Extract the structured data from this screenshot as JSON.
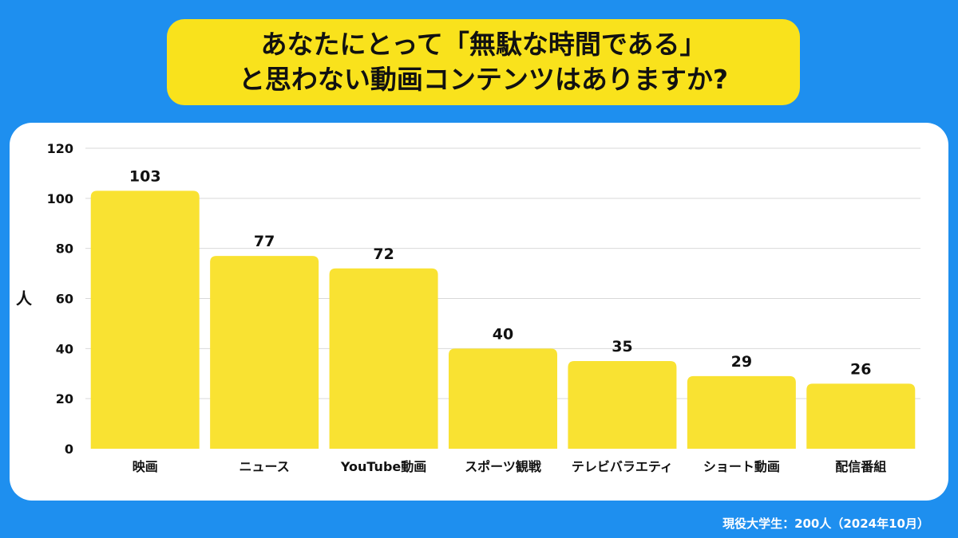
{
  "title": {
    "line1": "あなたにとって「無駄な時間である」",
    "line2": "と思わない動画コンテンツはありますか?"
  },
  "chart_data": {
    "type": "bar",
    "categories": [
      "映画",
      "ニュース",
      "YouTube動画",
      "スポーツ観戦",
      "テレビバラエティ",
      "ショート動画",
      "配信番組"
    ],
    "values": [
      103,
      77,
      72,
      40,
      35,
      29,
      26
    ],
    "ylabel": "人",
    "ylim": [
      0,
      120
    ],
    "yticks": [
      0,
      20,
      40,
      60,
      80,
      100,
      120
    ],
    "grid": true,
    "data_labels": true
  },
  "colors": {
    "background": "#1e8fef",
    "bar": "#f9e232",
    "title_box": "#f9e21c",
    "grid": "#d9d9d9"
  },
  "source_note": "現役大学生：200人（2024年10月）"
}
